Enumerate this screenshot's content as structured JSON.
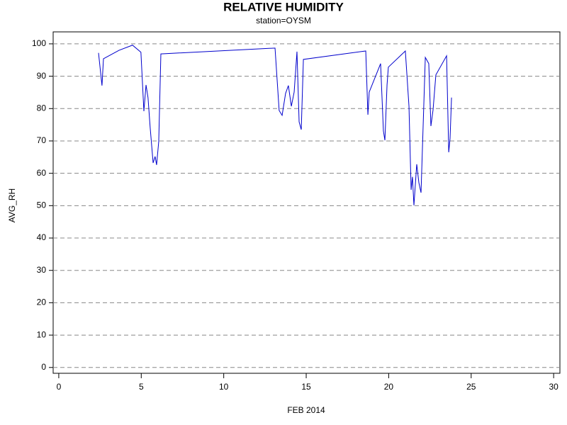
{
  "chart_data": {
    "type": "line",
    "title": "RELATIVE HUMIDITY",
    "subtitle": "station=OYSM",
    "x_label": "FEB 2014",
    "y_label": "AVG_RH",
    "color": "#0000cc",
    "grid": true,
    "x": [
      2.41,
      2.62,
      2.71,
      3.65,
      4.47,
      4.98,
      5.16,
      5.29,
      5.41,
      5.54,
      5.72,
      5.84,
      5.93,
      6.06,
      6.19,
      13.11,
      13.36,
      13.54,
      13.75,
      13.92,
      14.1,
      14.27,
      14.44,
      14.57,
      14.7,
      14.83,
      18.61,
      18.74,
      18.82,
      19.51,
      19.68,
      19.77,
      19.9,
      19.98,
      21.01,
      21.23,
      21.36,
      21.44,
      21.53,
      21.7,
      21.83,
      21.96,
      22.22,
      22.43,
      22.56,
      22.69,
      22.86,
      23.51,
      23.64,
      23.72,
      23.81
    ],
    "values": [
      97.2,
      87.1,
      95.4,
      98.0,
      99.6,
      97.4,
      79.2,
      87.3,
      83.4,
      74.2,
      63.2,
      65.2,
      62.6,
      69.8,
      96.9,
      98.7,
      79.4,
      77.9,
      84.7,
      87.1,
      80.7,
      85.1,
      97.6,
      75.9,
      73.5,
      95.2,
      97.8,
      78.1,
      85.1,
      93.9,
      73.1,
      70.2,
      87.3,
      92.8,
      97.8,
      80.7,
      54.9,
      58.9,
      50.1,
      62.8,
      57.1,
      54.0,
      95.8,
      93.9,
      74.6,
      79.6,
      90.4,
      96.3,
      66.5,
      70.7,
      83.4
    ],
    "xlim": [
      -0.34,
      30.38
    ],
    "ylim": [
      -1.8,
      103.7
    ],
    "xticks": [
      0,
      5,
      10,
      15,
      20,
      25,
      30
    ],
    "yticks": [
      0,
      10,
      20,
      30,
      40,
      50,
      60,
      70,
      80,
      90,
      100
    ]
  }
}
